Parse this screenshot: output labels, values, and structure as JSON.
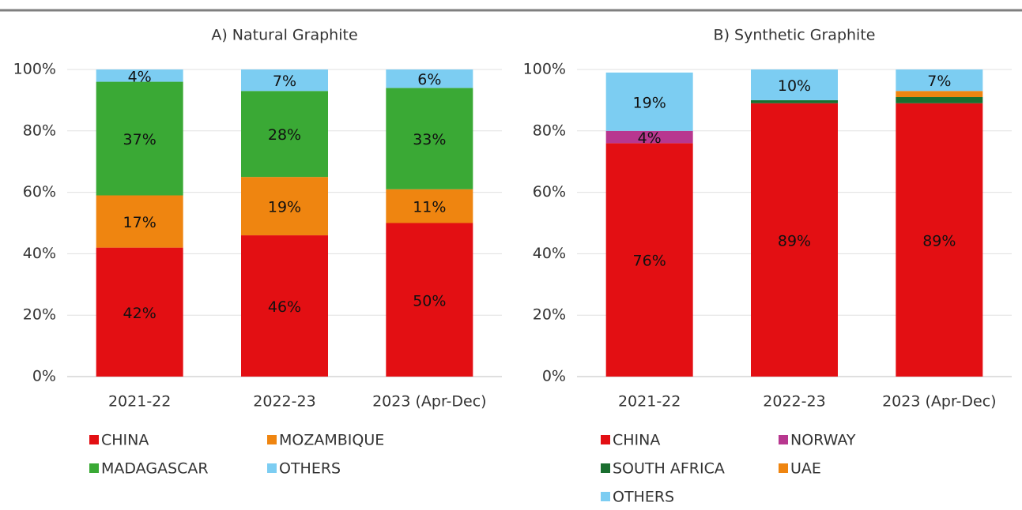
{
  "chart_data": [
    {
      "type": "stacked_bar",
      "title": "A) Natural Graphite",
      "categories": [
        "2021-22",
        "2022-23",
        "2023 (Apr-Dec)"
      ],
      "series": [
        {
          "name": "CHINA",
          "color": "#e30f13",
          "values": [
            42,
            46,
            50
          ],
          "value_labels": [
            "42%",
            "46%",
            "50%"
          ]
        },
        {
          "name": "MOZAMBIQUE",
          "color": "#ef8510",
          "values": [
            17,
            19,
            11
          ],
          "value_labels": [
            "17%",
            "19%",
            "11%"
          ]
        },
        {
          "name": "MADAGASCAR",
          "color": "#3aa935",
          "values": [
            37,
            28,
            33
          ],
          "value_labels": [
            "37%",
            "28%",
            "33%"
          ]
        },
        {
          "name": "OTHERS",
          "color": "#7ccdf2",
          "values": [
            4,
            7,
            6
          ],
          "value_labels": [
            "4%",
            "7%",
            "6%"
          ]
        }
      ],
      "ylim": [
        0,
        100
      ],
      "yticks": [
        {
          "value": 0,
          "label": "0%"
        },
        {
          "value": 20,
          "label": "20%"
        },
        {
          "value": 40,
          "label": "40%"
        },
        {
          "value": 60,
          "label": "60%"
        },
        {
          "value": 80,
          "label": "80%"
        },
        {
          "value": 100,
          "label": "100%"
        }
      ],
      "grid": true,
      "legend": "bottom"
    },
    {
      "type": "stacked_bar",
      "title": "B) Synthetic Graphite",
      "categories": [
        "2021-22",
        "2022-23",
        "2023 (Apr-Dec)"
      ],
      "series": [
        {
          "name": "CHINA",
          "color": "#e30f13",
          "values": [
            76,
            89,
            89
          ],
          "value_labels": [
            "76%",
            "89%",
            "89%"
          ]
        },
        {
          "name": "NORWAY",
          "color": "#b8378f",
          "values": [
            4,
            0,
            0
          ],
          "value_labels": [
            "4%",
            null,
            null
          ]
        },
        {
          "name": "SOUTH AFRICA",
          "color": "#1a6e2f",
          "values": [
            0,
            1,
            2
          ],
          "value_labels": [
            null,
            null,
            null
          ]
        },
        {
          "name": "UAE",
          "color": "#ef8510",
          "values": [
            0,
            0,
            2
          ],
          "value_labels": [
            null,
            null,
            null
          ]
        },
        {
          "name": "OTHERS",
          "color": "#7ccdf2",
          "values": [
            19,
            10,
            7
          ],
          "value_labels": [
            "19%",
            "10%",
            "7%"
          ]
        }
      ],
      "ylim": [
        0,
        100
      ],
      "yticks": [
        {
          "value": 0,
          "label": "0%"
        },
        {
          "value": 20,
          "label": "20%"
        },
        {
          "value": 40,
          "label": "40%"
        },
        {
          "value": 60,
          "label": "60%"
        },
        {
          "value": 80,
          "label": "80%"
        },
        {
          "value": 100,
          "label": "100%"
        }
      ],
      "grid": true,
      "legend": "bottom"
    }
  ]
}
